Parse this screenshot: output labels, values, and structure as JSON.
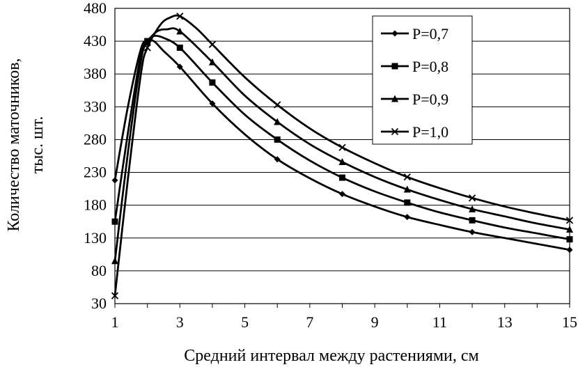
{
  "chart_data": {
    "type": "line",
    "title": "",
    "xlabel": "Средний интервал между растениями, см",
    "ylabel": [
      "Количество маточников,",
      "тыс. шт."
    ],
    "xlim": [
      1,
      15
    ],
    "ylim": [
      30,
      480
    ],
    "x_ticks": [
      1,
      3,
      5,
      7,
      9,
      11,
      13,
      15
    ],
    "y_ticks": [
      30,
      80,
      130,
      180,
      230,
      280,
      330,
      380,
      430,
      480
    ],
    "grid": {
      "horizontal": true,
      "vertical": false
    },
    "legend_position": "top-right",
    "series": [
      {
        "name": "P=0,7",
        "marker": "diamond",
        "x": [
          1,
          2,
          3,
          4,
          6,
          8,
          10,
          12,
          15
        ],
        "y": [
          218,
          430,
          391,
          335,
          250,
          197,
          162,
          139,
          112
        ],
        "curve": [
          [
            1,
            218
          ],
          [
            1.4,
            330
          ],
          [
            1.8,
            418
          ],
          [
            2.0,
            430
          ],
          [
            2.2,
            430
          ],
          [
            2.5,
            415
          ],
          [
            3,
            391
          ],
          [
            4,
            335
          ],
          [
            5,
            288
          ],
          [
            6,
            250
          ],
          [
            7,
            221
          ],
          [
            8,
            197
          ],
          [
            9,
            178
          ],
          [
            10,
            162
          ],
          [
            11,
            150
          ],
          [
            12,
            139
          ],
          [
            13,
            130
          ],
          [
            14,
            121
          ],
          [
            15,
            112
          ]
        ]
      },
      {
        "name": "P=0,8",
        "marker": "square",
        "x": [
          1,
          2,
          3,
          4,
          6,
          8,
          10,
          12,
          15
        ],
        "y": [
          155,
          430,
          420,
          367,
          280,
          222,
          184,
          157,
          128
        ],
        "curve": [
          [
            1,
            155
          ],
          [
            1.4,
            290
          ],
          [
            1.8,
            410
          ],
          [
            2.0,
            430
          ],
          [
            2.2,
            438
          ],
          [
            2.5,
            435
          ],
          [
            3,
            420
          ],
          [
            4,
            367
          ],
          [
            5,
            318
          ],
          [
            6,
            280
          ],
          [
            7,
            248
          ],
          [
            8,
            222
          ],
          [
            9,
            201
          ],
          [
            10,
            184
          ],
          [
            11,
            169
          ],
          [
            12,
            157
          ],
          [
            13,
            146
          ],
          [
            14,
            137
          ],
          [
            15,
            128
          ]
        ]
      },
      {
        "name": "P=0,9",
        "marker": "triangle",
        "x": [
          1,
          2,
          3,
          4,
          6,
          8,
          10,
          12,
          15
        ],
        "y": [
          95,
          428,
          445,
          398,
          307,
          246,
          204,
          174,
          143
        ],
        "curve": [
          [
            1,
            95
          ],
          [
            1.4,
            260
          ],
          [
            1.8,
            400
          ],
          [
            2.0,
            428
          ],
          [
            2.3,
            445
          ],
          [
            2.6,
            448
          ],
          [
            3,
            445
          ],
          [
            4,
            398
          ],
          [
            5,
            347
          ],
          [
            6,
            307
          ],
          [
            7,
            273
          ],
          [
            8,
            246
          ],
          [
            9,
            223
          ],
          [
            10,
            204
          ],
          [
            11,
            188
          ],
          [
            12,
            174
          ],
          [
            13,
            163
          ],
          [
            14,
            152
          ],
          [
            15,
            143
          ]
        ]
      },
      {
        "name": "P=1,0",
        "marker": "x",
        "x": [
          1,
          2,
          3,
          4,
          6,
          8,
          10,
          12,
          15
        ],
        "y": [
          42,
          420,
          468,
          425,
          333,
          268,
          223,
          191,
          157
        ],
        "curve": [
          [
            1,
            42
          ],
          [
            1.4,
            220
          ],
          [
            1.8,
            380
          ],
          [
            2.0,
            420
          ],
          [
            2.4,
            455
          ],
          [
            2.7,
            466
          ],
          [
            3,
            468
          ],
          [
            3.5,
            450
          ],
          [
            4,
            425
          ],
          [
            5,
            375
          ],
          [
            6,
            333
          ],
          [
            7,
            297
          ],
          [
            8,
            268
          ],
          [
            9,
            244
          ],
          [
            10,
            223
          ],
          [
            11,
            206
          ],
          [
            12,
            191
          ],
          [
            13,
            178
          ],
          [
            14,
            167
          ],
          [
            15,
            157
          ]
        ]
      }
    ]
  }
}
